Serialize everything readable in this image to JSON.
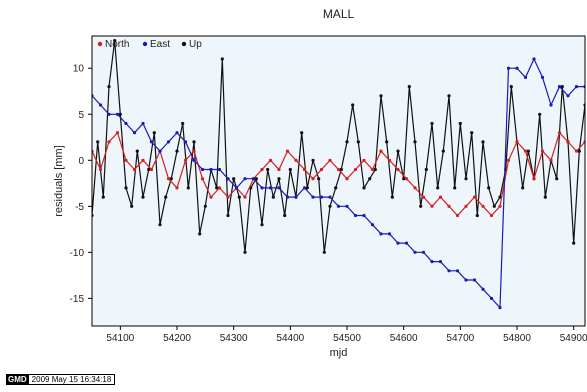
{
  "chart_data": {
    "type": "line",
    "title": "MALL",
    "xlabel": "mjd",
    "ylabel": "residuals [mm]",
    "xlim": [
      54050,
      54920
    ],
    "ylim": [
      -18,
      13.5
    ],
    "xticks": [
      54100,
      54200,
      54300,
      54400,
      54500,
      54600,
      54700,
      54800,
      54900
    ],
    "yticks": [
      -15,
      -10,
      -5,
      0,
      5,
      10
    ],
    "grid": false,
    "legend_position": "top-left",
    "background_color": "#eef6fc",
    "series": [
      {
        "name": "North",
        "color": "#d42020",
        "x": [
          54050,
          54065,
          54080,
          54095,
          54110,
          54125,
          54140,
          54155,
          54170,
          54185,
          54200,
          54215,
          54230,
          54245,
          54260,
          54275,
          54290,
          54305,
          54320,
          54335,
          54350,
          54365,
          54380,
          54395,
          54410,
          54425,
          54440,
          54455,
          54470,
          54485,
          54500,
          54515,
          54530,
          54545,
          54560,
          54575,
          54590,
          54605,
          54620,
          54635,
          54650,
          54665,
          54680,
          54695,
          54710,
          54725,
          54740,
          54755,
          54770,
          54785,
          54800,
          54815,
          54830,
          54845,
          54860,
          54875,
          54890,
          54905,
          54920
        ],
        "y": [
          1,
          -1,
          2,
          3,
          0,
          -1,
          0,
          -1,
          1,
          -2,
          -3,
          0,
          1,
          -2,
          -4,
          -3,
          -4,
          -3,
          -4,
          -2,
          -1,
          0,
          -1,
          1,
          0,
          -1,
          -2,
          -1,
          0,
          -1,
          -2,
          -1,
          0,
          -1,
          1,
          0,
          -1,
          -2,
          -3,
          -4,
          -5,
          -4,
          -5,
          -6,
          -5,
          -4,
          -5,
          -6,
          -5,
          0,
          2,
          1,
          -2,
          1,
          0,
          3,
          2,
          1,
          2
        ]
      },
      {
        "name": "East",
        "color": "#1a1ab8",
        "x": [
          54050,
          54065,
          54080,
          54095,
          54110,
          54125,
          54140,
          54155,
          54170,
          54185,
          54200,
          54215,
          54230,
          54245,
          54260,
          54275,
          54290,
          54305,
          54320,
          54335,
          54350,
          54365,
          54380,
          54395,
          54410,
          54425,
          54440,
          54455,
          54470,
          54485,
          54500,
          54515,
          54530,
          54545,
          54560,
          54575,
          54590,
          54605,
          54620,
          54635,
          54650,
          54665,
          54680,
          54695,
          54710,
          54725,
          54740,
          54755,
          54770,
          54785,
          54800,
          54815,
          54830,
          54845,
          54860,
          54875,
          54890,
          54905,
          54920
        ],
        "y": [
          7,
          6,
          5,
          5,
          4,
          3,
          4,
          2,
          1,
          2,
          3,
          2,
          0,
          -1,
          -1,
          -1,
          -2,
          -3,
          -2,
          -2,
          -3,
          -3,
          -3,
          -4,
          -4,
          -3,
          -4,
          -4,
          -4,
          -5,
          -5,
          -6,
          -6,
          -7,
          -8,
          -8,
          -9,
          -9,
          -10,
          -10,
          -11,
          -11,
          -12,
          -12,
          -13,
          -13,
          -14,
          -15,
          -16,
          10,
          10,
          9,
          11,
          9,
          6,
          8,
          7,
          8,
          8
        ]
      },
      {
        "name": "Up",
        "color": "#111111",
        "x": [
          54050,
          54060,
          54070,
          54080,
          54090,
          54100,
          54110,
          54120,
          54130,
          54140,
          54150,
          54160,
          54170,
          54180,
          54190,
          54200,
          54210,
          54220,
          54230,
          54240,
          54250,
          54260,
          54270,
          54280,
          54290,
          54300,
          54310,
          54320,
          54330,
          54340,
          54350,
          54360,
          54370,
          54380,
          54390,
          54400,
          54410,
          54420,
          54430,
          54440,
          54450,
          54460,
          54470,
          54480,
          54490,
          54500,
          54510,
          54520,
          54530,
          54540,
          54550,
          54560,
          54570,
          54580,
          54590,
          54600,
          54610,
          54620,
          54630,
          54640,
          54650,
          54660,
          54670,
          54680,
          54690,
          54700,
          54710,
          54720,
          54730,
          54740,
          54750,
          54760,
          54770,
          54780,
          54790,
          54800,
          54810,
          54820,
          54830,
          54840,
          54850,
          54860,
          54870,
          54880,
          54890,
          54900,
          54910,
          54920
        ],
        "y": [
          -6,
          2,
          -4,
          8,
          13,
          5,
          -3,
          -5,
          1,
          -4,
          -1,
          3,
          -7,
          -4,
          -2,
          1,
          4,
          -3,
          2,
          -8,
          -5,
          -1,
          -3,
          11,
          -6,
          -2,
          -4,
          -10,
          -3,
          -2,
          -7,
          -1,
          -4,
          -2,
          -6,
          -1,
          -4,
          3,
          -3,
          0,
          -2,
          -10,
          -5,
          -3,
          -1,
          2,
          6,
          2,
          -3,
          -2,
          -1,
          7,
          2,
          -4,
          1,
          -2,
          8,
          2,
          -5,
          -1,
          4,
          -3,
          1,
          7,
          -3,
          4,
          -2,
          3,
          -6,
          2,
          -3,
          -5,
          -4,
          -1,
          8,
          2,
          -3,
          1,
          -2,
          5,
          -4,
          0,
          -2,
          8,
          2,
          -9,
          1,
          6
        ]
      }
    ]
  },
  "footer": {
    "logo": "GMD",
    "timestamp": "2009 May 15 16:34:18"
  }
}
